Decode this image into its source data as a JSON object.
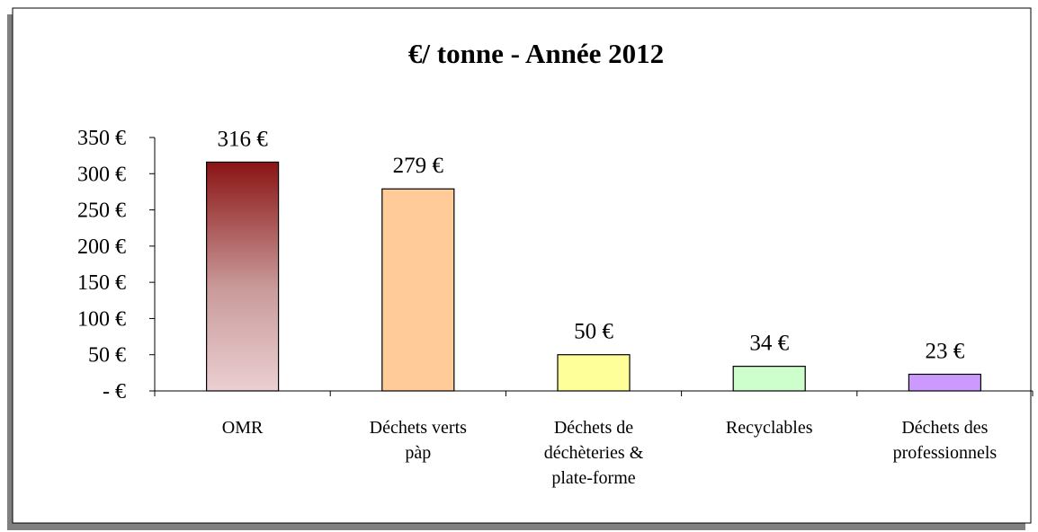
{
  "chart_data": {
    "type": "bar",
    "title": "€/ tonne - Année 2012",
    "categories": [
      [
        "OMR"
      ],
      [
        "Déchets verts",
        "pàp"
      ],
      [
        "Déchets de",
        "déchèteries &",
        "plate-forme"
      ],
      [
        "Recyclables"
      ],
      [
        "Déchets des",
        "professionnels"
      ]
    ],
    "values": [
      316,
      279,
      50,
      34,
      23
    ],
    "value_labels": [
      "316 €",
      "279 €",
      "50 €",
      "34 €",
      "23 €"
    ],
    "colors": [
      "#8b1414",
      "#ffcc99",
      "#ffff99",
      "#ccffcc",
      "#cc99ff"
    ],
    "ylim": [
      0,
      350
    ],
    "yticks": [
      {
        "value": 0,
        "label": "-   €"
      },
      {
        "value": 50,
        "label": "50 €"
      },
      {
        "value": 100,
        "label": "100 €"
      },
      {
        "value": 150,
        "label": "150 €"
      },
      {
        "value": 200,
        "label": "200 €"
      },
      {
        "value": 250,
        "label": "250 €"
      },
      {
        "value": 300,
        "label": "300 €"
      },
      {
        "value": 350,
        "label": "350 €"
      }
    ],
    "grid": false
  }
}
